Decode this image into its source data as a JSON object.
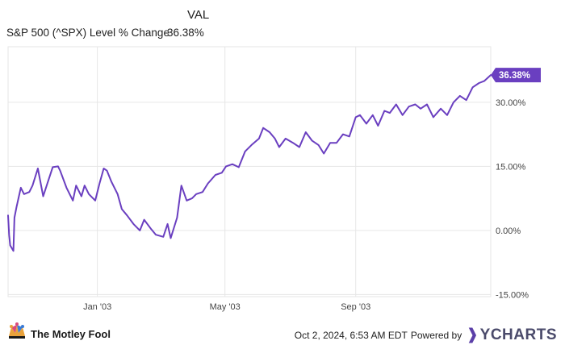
{
  "header": {
    "val_label": "VAL",
    "series_label": "S&P 500 (^SPX) Level % Change",
    "series_value": "36.38%"
  },
  "footer": {
    "brand": "The Motley Fool",
    "timestamp": "Oct 2, 2024, 6:53 AM EDT",
    "powered_by": "Powered by",
    "provider": "YCHARTS"
  },
  "colors": {
    "line": "#6a3fc0",
    "label_bg": "#6a3fc0",
    "grid": "#e6e6e6"
  },
  "chart_data": {
    "type": "line",
    "title": "",
    "xlabel": "",
    "ylabel": "",
    "x_tick_labels": [
      "Jan '03",
      "May '03",
      "Sep '03"
    ],
    "x_tick_dates": [
      "2003-01-01",
      "2003-05-01",
      "2003-09-01"
    ],
    "y_ticks": [
      -15,
      0,
      15,
      30
    ],
    "y_tick_labels": [
      "-15.00%",
      "0.00%",
      "15.00%",
      "30.00%"
    ],
    "ylim": [
      -15.5,
      43
    ],
    "xlim": [
      "2002-10-09",
      "2004-01-06"
    ],
    "grid": true,
    "end_label": "36.38%",
    "series": [
      {
        "name": "S&P 500 (^SPX) Level % Change",
        "x": [
          "2002-10-09",
          "2002-10-10",
          "2002-10-11",
          "2002-10-14",
          "2002-10-15",
          "2002-10-17",
          "2002-10-21",
          "2002-10-24",
          "2002-10-29",
          "2002-11-01",
          "2002-11-06",
          "2002-11-11",
          "2002-11-15",
          "2002-11-20",
          "2002-11-25",
          "2002-11-27",
          "2002-12-03",
          "2002-12-09",
          "2002-12-12",
          "2002-12-17",
          "2002-12-20",
          "2002-12-24",
          "2002-12-30",
          "2003-01-03",
          "2003-01-07",
          "2003-01-10",
          "2003-01-14",
          "2003-01-20",
          "2003-01-24",
          "2003-01-29",
          "2003-02-04",
          "2003-02-10",
          "2003-02-14",
          "2003-02-20",
          "2003-02-25",
          "2003-03-04",
          "2003-03-08",
          "2003-03-11",
          "2003-03-17",
          "2003-03-21",
          "2003-03-26",
          "2003-03-31",
          "2003-04-04",
          "2003-04-10",
          "2003-04-15",
          "2003-04-22",
          "2003-04-28",
          "2003-05-02",
          "2003-05-08",
          "2003-05-14",
          "2003-05-20",
          "2003-05-26",
          "2003-06-02",
          "2003-06-06",
          "2003-06-12",
          "2003-06-17",
          "2003-06-21",
          "2003-06-27",
          "2003-07-04",
          "2003-07-10",
          "2003-07-16",
          "2003-07-22",
          "2003-07-28",
          "2003-08-02",
          "2003-08-08",
          "2003-08-14",
          "2003-08-20",
          "2003-08-26",
          "2003-09-01",
          "2003-09-05",
          "2003-09-11",
          "2003-09-17",
          "2003-09-22",
          "2003-09-28",
          "2003-10-03",
          "2003-10-09",
          "2003-10-15",
          "2003-10-21",
          "2003-10-27",
          "2003-11-01",
          "2003-11-07",
          "2003-11-13",
          "2003-11-20",
          "2003-11-26",
          "2003-12-02",
          "2003-12-08",
          "2003-12-14",
          "2003-12-20",
          "2003-12-26",
          "2003-12-31",
          "2004-01-06"
        ],
        "values": [
          3.5,
          -1.0,
          -3.5,
          -4.8,
          3.0,
          5.5,
          10.0,
          8.5,
          9.0,
          10.5,
          14.5,
          8.0,
          11.0,
          14.8,
          15.0,
          14.0,
          10.0,
          7.0,
          10.5,
          8.0,
          10.5,
          8.5,
          7.0,
          11.0,
          14.5,
          14.0,
          11.5,
          8.5,
          5.0,
          3.5,
          1.5,
          0.0,
          2.5,
          0.5,
          -1.0,
          -1.5,
          1.5,
          -1.8,
          3.0,
          10.5,
          7.0,
          7.5,
          8.5,
          9.0,
          11.0,
          13.0,
          13.5,
          15.0,
          15.5,
          14.8,
          18.5,
          20.0,
          21.5,
          24.0,
          23.0,
          21.5,
          19.5,
          21.5,
          20.5,
          19.5,
          23.0,
          21.0,
          20.0,
          18.0,
          20.5,
          20.5,
          22.5,
          22.0,
          26.5,
          27.0,
          25.0,
          27.0,
          24.5,
          28.0,
          27.5,
          29.5,
          27.0,
          29.0,
          29.5,
          28.5,
          29.5,
          26.5,
          28.5,
          27.0,
          30.0,
          31.5,
          30.5,
          33.5,
          34.5,
          35.0,
          36.38
        ]
      }
    ]
  }
}
